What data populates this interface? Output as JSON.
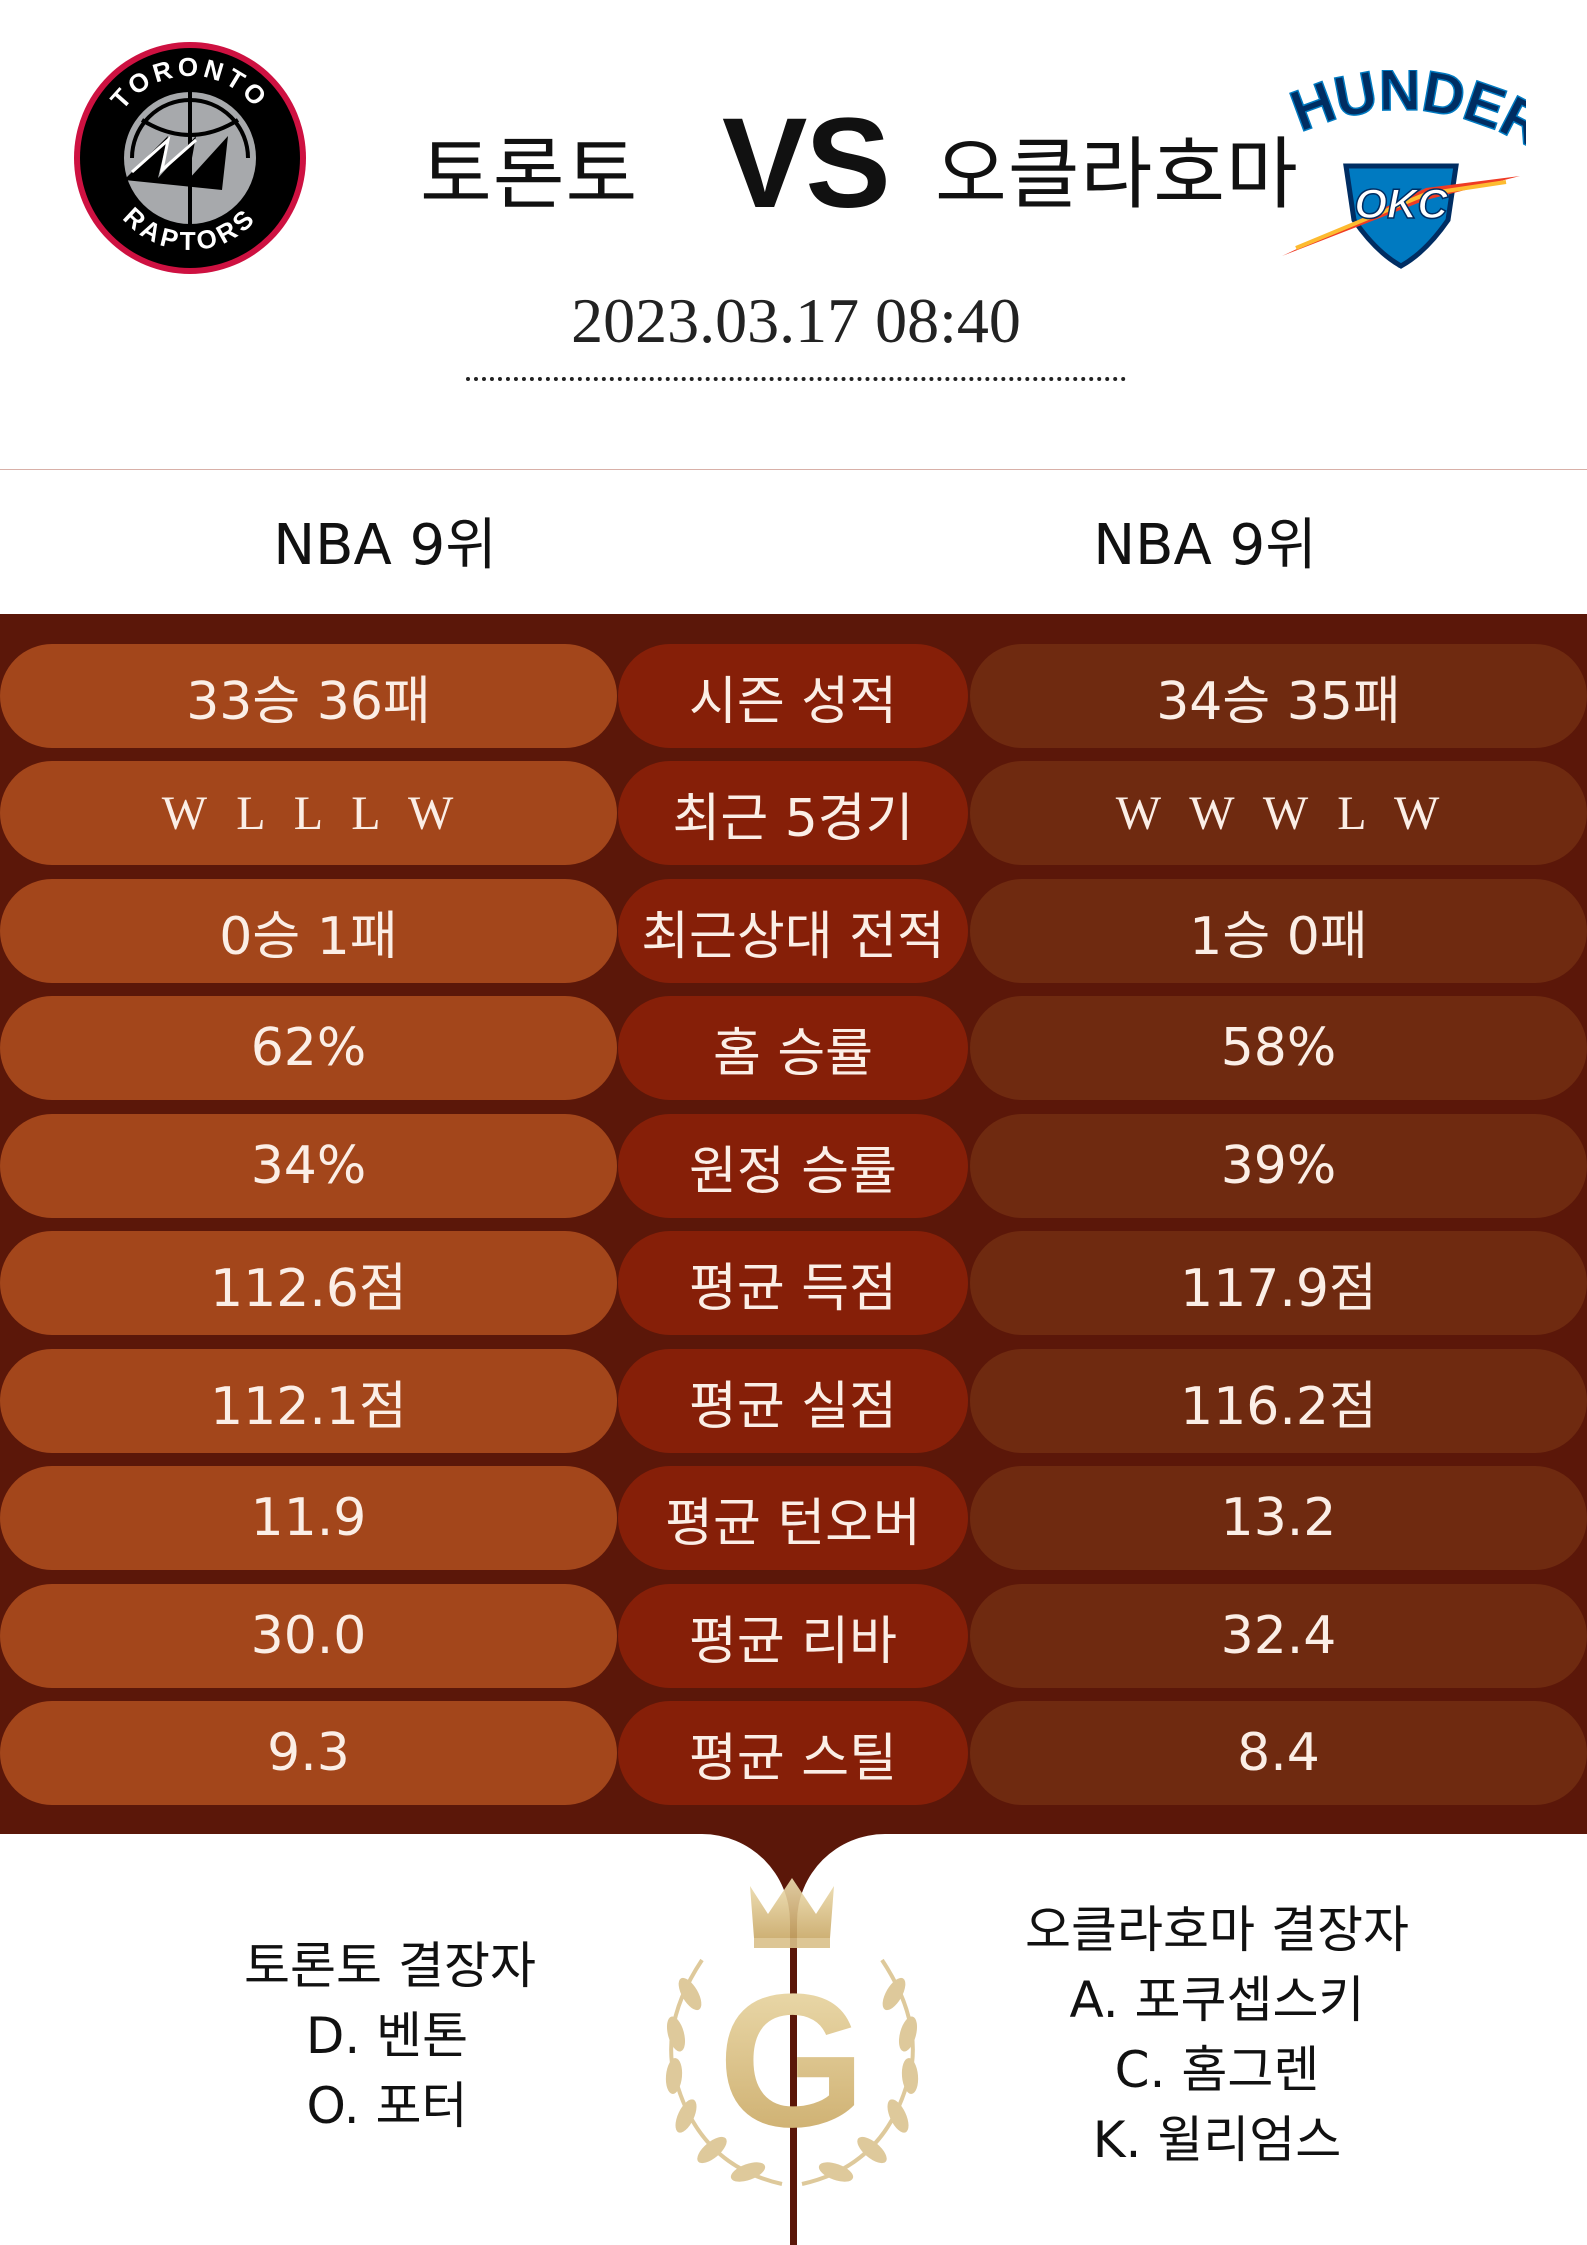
{
  "match": {
    "home_team": "토론토",
    "away_team": "오클라호마",
    "vs": "VS",
    "datetime": "2023.03.17  08:40"
  },
  "home_logo": {
    "icon": "toronto-raptors-logo-icon",
    "ring_top_text": "TORONTO",
    "ring_bottom_text": "RAPTORS"
  },
  "away_logo": {
    "icon": "okc-thunder-logo-icon",
    "wordmark": "THUNDER",
    "shield_text": "OKC"
  },
  "ranks": {
    "home": "NBA 9위",
    "away": "NBA 9위"
  },
  "stats": [
    {
      "home": "33승 36패",
      "label": "시즌 성적",
      "away": "34승 35패",
      "kind": "text"
    },
    {
      "home": "W  L  L  L  W",
      "label": "최근 5경기",
      "away": "W  W  W  L  W",
      "kind": "form"
    },
    {
      "home": "0승 1패",
      "label": "최근상대 전적",
      "away": "1승 0패",
      "kind": "text"
    },
    {
      "home": "62%",
      "label": "홈 승률",
      "away": "58%",
      "kind": "text"
    },
    {
      "home": "34%",
      "label": "원정 승률",
      "away": "39%",
      "kind": "text"
    },
    {
      "home": "112.6점",
      "label": "평균 득점",
      "away": "117.9점",
      "kind": "text"
    },
    {
      "home": "112.1점",
      "label": "평균 실점",
      "away": "116.2점",
      "kind": "text"
    },
    {
      "home": "11.9",
      "label": "평균 턴오버",
      "away": "13.2",
      "kind": "text"
    },
    {
      "home": "30.0",
      "label": "평균 리바",
      "away": "32.4",
      "kind": "text"
    },
    {
      "home": "9.3",
      "label": "평균 스틸",
      "away": "8.4",
      "kind": "text"
    }
  ],
  "injuries": {
    "home": {
      "title": "토론토 결장자",
      "players": [
        "D. 벤톤",
        "O. 포터"
      ]
    },
    "away": {
      "title": "오클라호마 결장자",
      "players": [
        "A. 포쿠셉스키",
        "C. 홈그렌",
        "K. 윌리엄스"
      ]
    }
  },
  "emblem": {
    "icon": "gold-g-laurel-crown-emblem-icon",
    "letter": "G"
  },
  "colors": {
    "panel_bg": "#5b1709",
    "home_pill": "#a3461b",
    "label_pill": "#861f08",
    "away_pill": "#6f2a10",
    "pill_text": "#fbeee6",
    "raptors_red": "#ce1141",
    "thunder_blue": "#007ac1",
    "thunder_orange": "#ef3b24",
    "gold": "#d9c08a"
  }
}
